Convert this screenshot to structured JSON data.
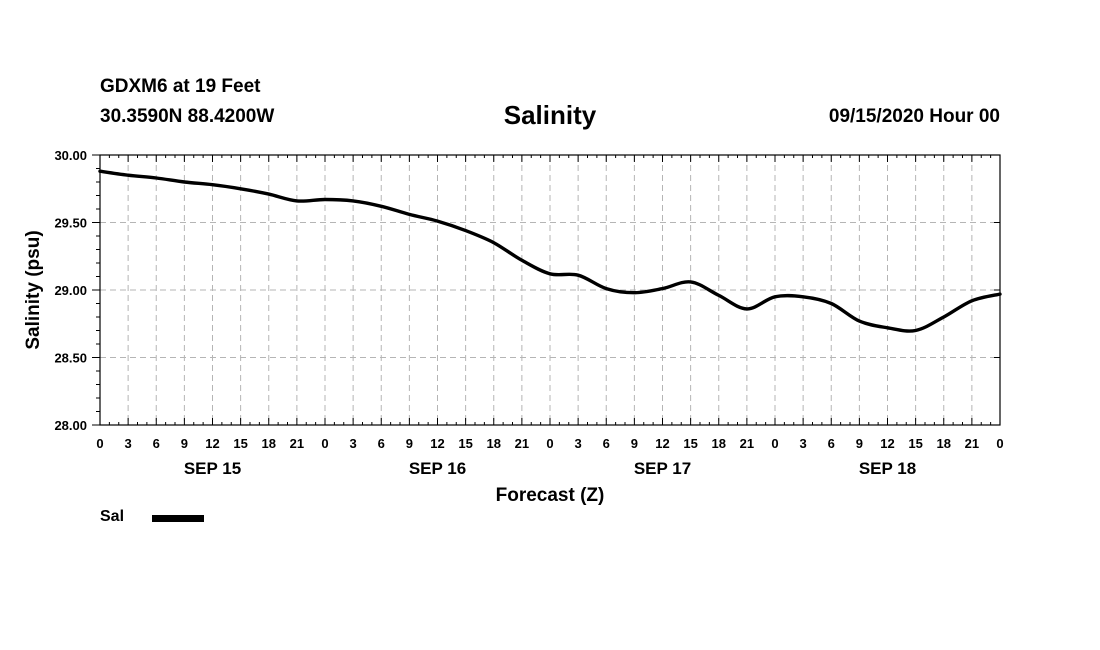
{
  "header": {
    "station": "GDXM6 at 19 Feet",
    "coords": "30.3590N 88.4200W",
    "title": "Salinity",
    "datetime": "09/15/2020 Hour 00"
  },
  "chart_data": {
    "type": "line",
    "title": "Salinity",
    "xlabel": "Forecast (Z)",
    "ylabel": "Salinity (psu)",
    "ylim": [
      28.0,
      30.0
    ],
    "xlim": [
      0,
      96
    ],
    "y_ticks": [
      "28.00",
      "28.50",
      "29.00",
      "29.50",
      "30.00"
    ],
    "y_tick_values": [
      28.0,
      28.5,
      29.0,
      29.5,
      30.0
    ],
    "x_tick_labels": [
      "0",
      "3",
      "6",
      "9",
      "12",
      "15",
      "18",
      "21",
      "0",
      "3",
      "6",
      "9",
      "12",
      "15",
      "18",
      "21",
      "0",
      "3",
      "6",
      "9",
      "12",
      "15",
      "18",
      "21",
      "0",
      "3",
      "6",
      "9",
      "12",
      "15",
      "18",
      "21",
      "0"
    ],
    "day_labels": [
      {
        "label": "SEP 15",
        "hour": 12
      },
      {
        "label": "SEP 16",
        "hour": 36
      },
      {
        "label": "SEP 17",
        "hour": 60
      },
      {
        "label": "SEP 18",
        "hour": 84
      }
    ],
    "grid": true,
    "series": [
      {
        "name": "Sal",
        "x": [
          0,
          3,
          6,
          9,
          12,
          15,
          18,
          21,
          24,
          27,
          30,
          33,
          36,
          39,
          42,
          45,
          48,
          51,
          54,
          57,
          60,
          63,
          66,
          69,
          72,
          75,
          78,
          81,
          84,
          87,
          90,
          93,
          96
        ],
        "values": [
          29.88,
          29.85,
          29.83,
          29.8,
          29.78,
          29.75,
          29.71,
          29.66,
          29.67,
          29.66,
          29.62,
          29.56,
          29.51,
          29.44,
          29.35,
          29.22,
          29.12,
          29.11,
          29.01,
          28.98,
          29.01,
          29.06,
          28.96,
          28.86,
          28.95,
          28.95,
          28.9,
          28.77,
          28.72,
          28.7,
          28.8,
          28.92,
          28.97
        ]
      }
    ]
  },
  "legend": {
    "label": "Sal",
    "color": "#000000"
  }
}
